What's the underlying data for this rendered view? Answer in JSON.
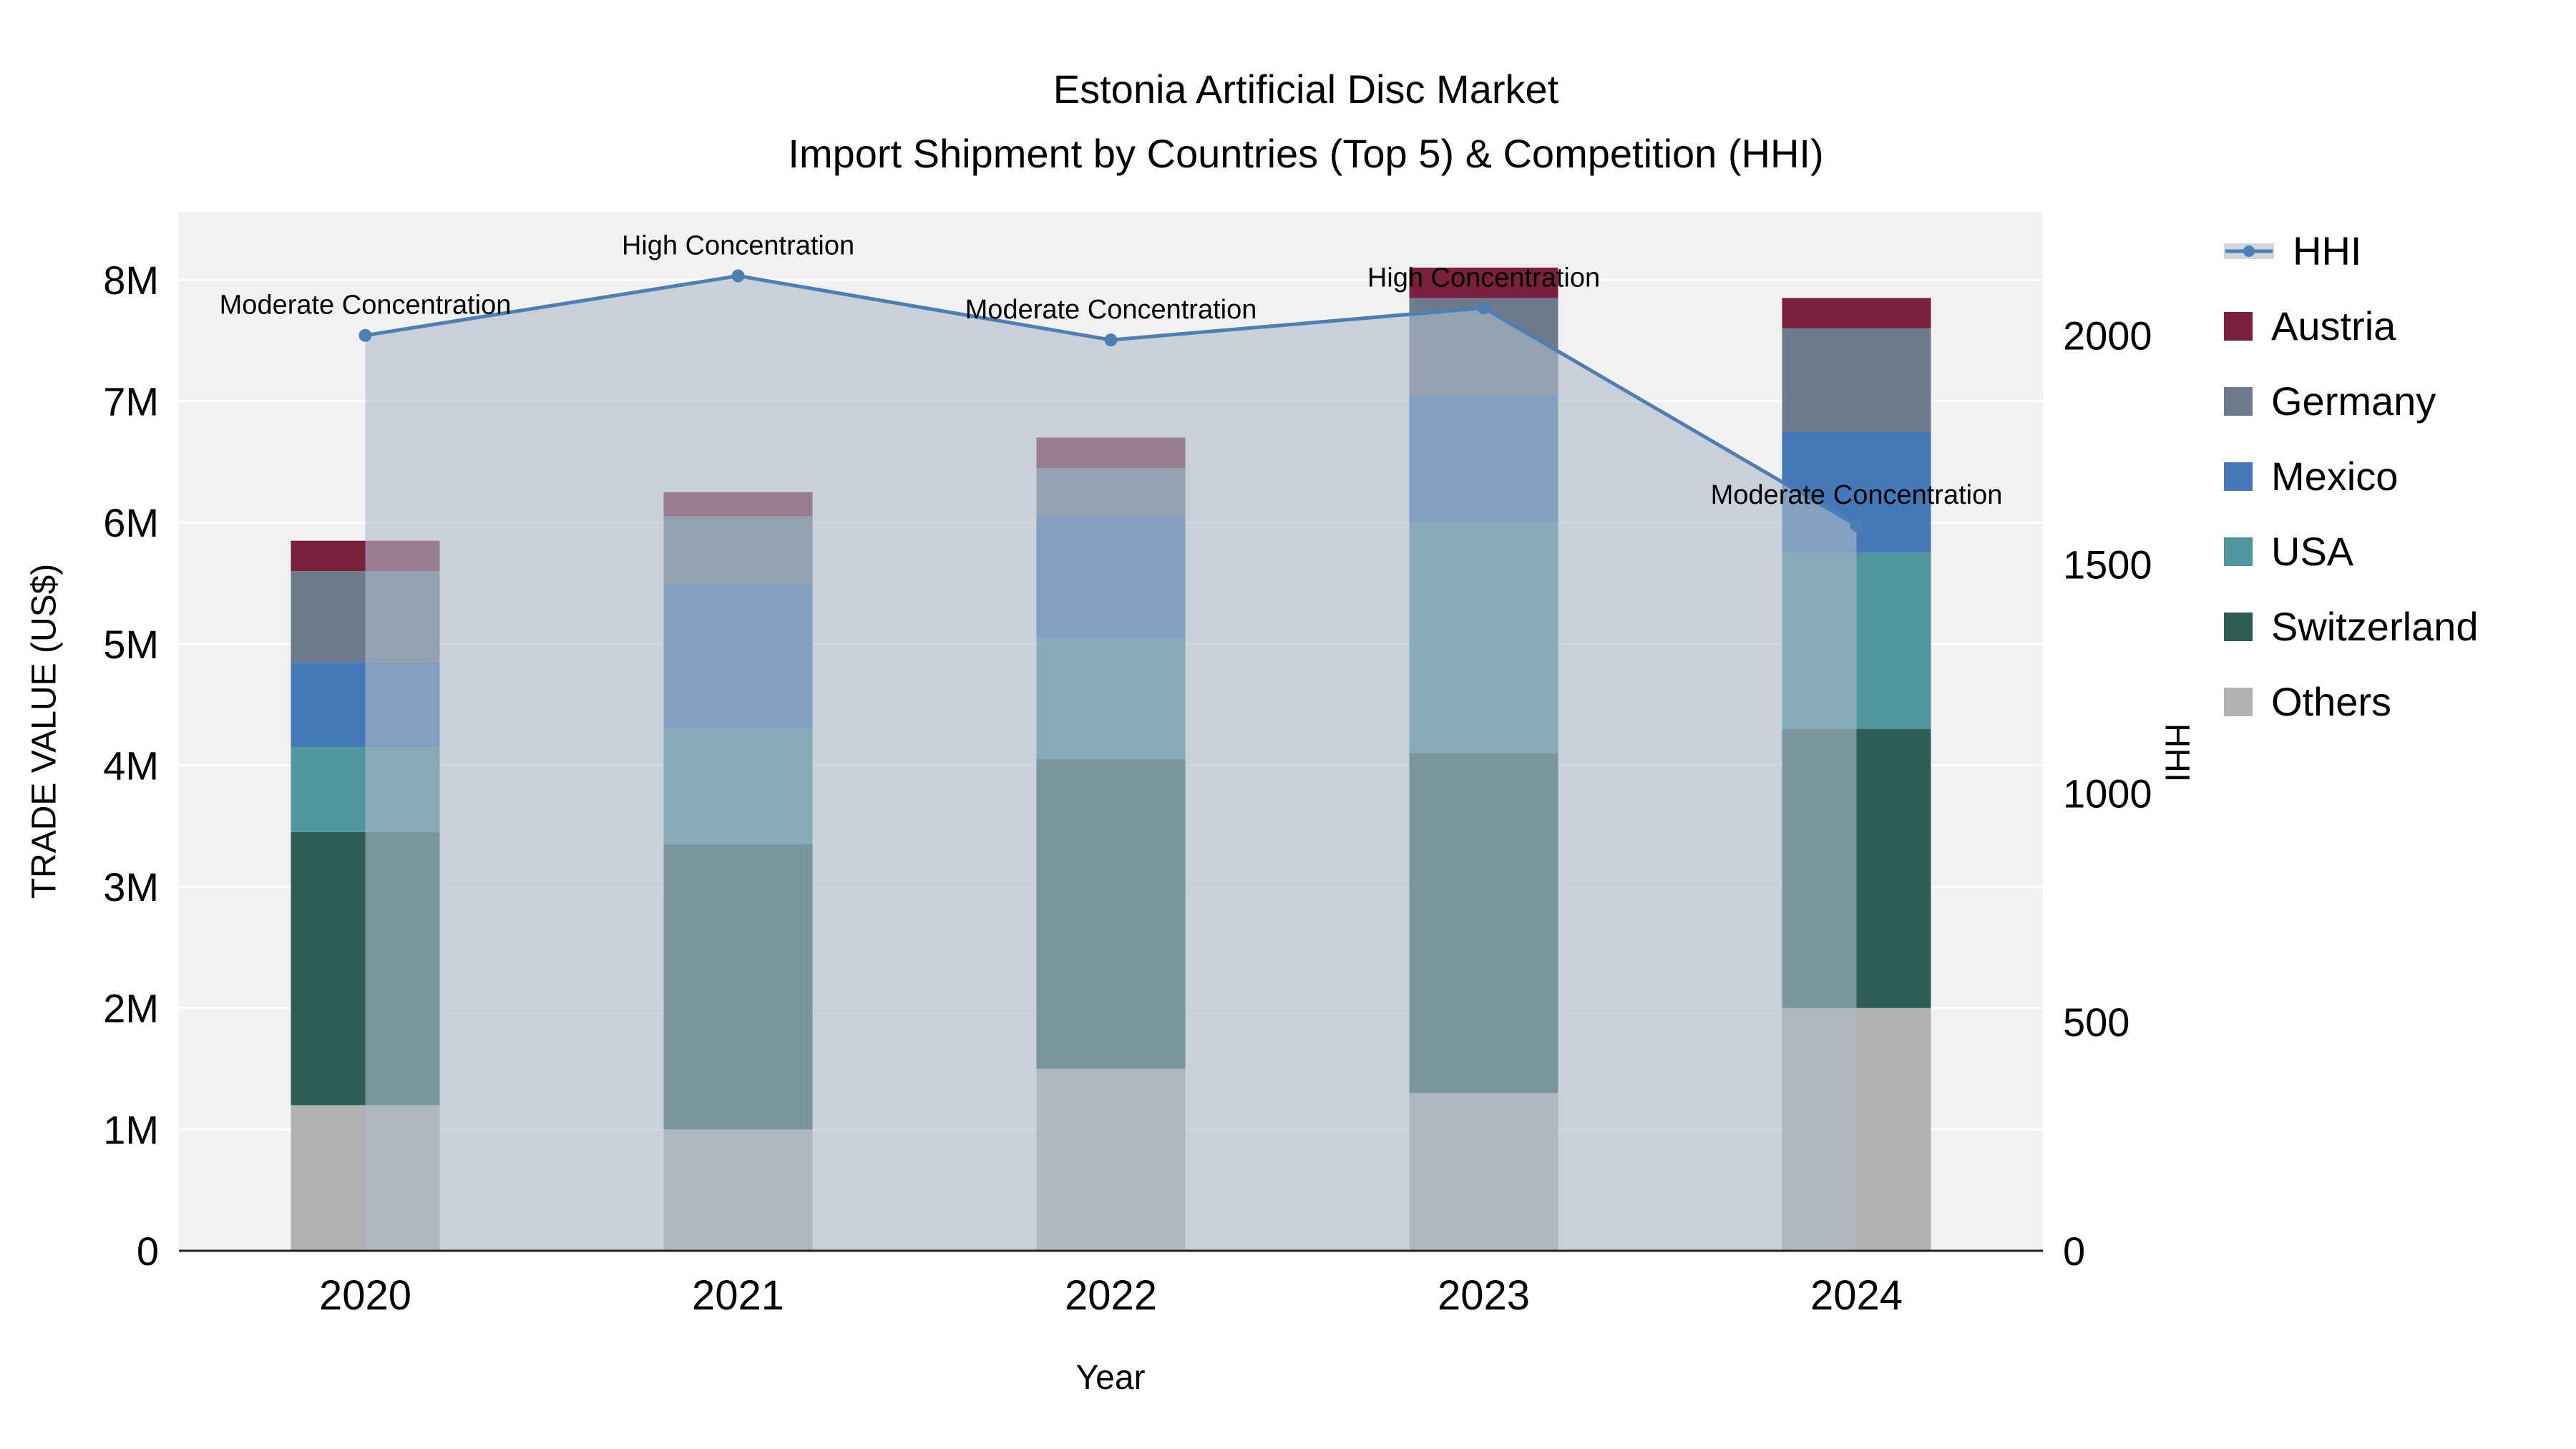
{
  "title": {
    "line1": "Estonia Artificial Disc Market",
    "line2": "Import Shipment by Countries (Top 5) & Competition (HHI)"
  },
  "chart_data": {
    "type": "bar",
    "subtype": "stacked-bars-with-hhi-line-and-area",
    "x": [
      "2020",
      "2021",
      "2022",
      "2023",
      "2024"
    ],
    "xlabel": "Year",
    "ylabel_left": "TRADE VALUE (US$)",
    "ylabel_right": "HHI",
    "ylim_left": [
      0,
      8560000
    ],
    "ylim_right": [
      0,
      2270
    ],
    "plot_bg": "#f1f1f1",
    "grid_color": "#ffffff",
    "axis_line_color": "#222222",
    "yticks_left": {
      "values": [
        0,
        1000000,
        2000000,
        3000000,
        4000000,
        5000000,
        6000000,
        7000000,
        8000000
      ],
      "labels": [
        "0",
        "1M",
        "2M",
        "3M",
        "4M",
        "5M",
        "6M",
        "7M",
        "8M"
      ]
    },
    "yticks_right": {
      "values": [
        0,
        500,
        1000,
        1500,
        2000
      ],
      "labels": [
        "0",
        "500",
        "1000",
        "1500",
        "2000"
      ]
    },
    "bar_series": [
      {
        "name": "Others",
        "color": "#b2b2b2",
        "values": [
          1200000,
          1000000,
          1500000,
          1300000,
          2000000
        ]
      },
      {
        "name": "Switzerland",
        "color": "#2f5d58",
        "values": [
          2250000,
          2350000,
          2550000,
          2800000,
          2300000
        ]
      },
      {
        "name": "USA",
        "color": "#4f979b",
        "values": [
          700000,
          950000,
          1000000,
          1900000,
          1450000
        ]
      },
      {
        "name": "Mexico",
        "color": "#4478b8",
        "values": [
          700000,
          1200000,
          1000000,
          1050000,
          1000000
        ]
      },
      {
        "name": "Germany",
        "color": "#6d7b8d",
        "values": [
          750000,
          550000,
          400000,
          800000,
          850000
        ]
      },
      {
        "name": "Austria",
        "color": "#7a1f3c",
        "values": [
          250000,
          200000,
          250000,
          250000,
          250000
        ]
      }
    ],
    "line_series": {
      "name": "HHI",
      "color": "#4d7fb2",
      "fill": "rgba(174,186,201,0.6)",
      "values": [
        2000,
        2130,
        1990,
        2060,
        1585
      ]
    },
    "annotations": [
      "Moderate Concentration",
      "High Concentration",
      "Moderate Concentration",
      "High Concentration",
      "Moderate Concentration"
    ],
    "legend_order": [
      "HHI",
      "Austria",
      "Germany",
      "Mexico",
      "USA",
      "Switzerland",
      "Others"
    ]
  }
}
